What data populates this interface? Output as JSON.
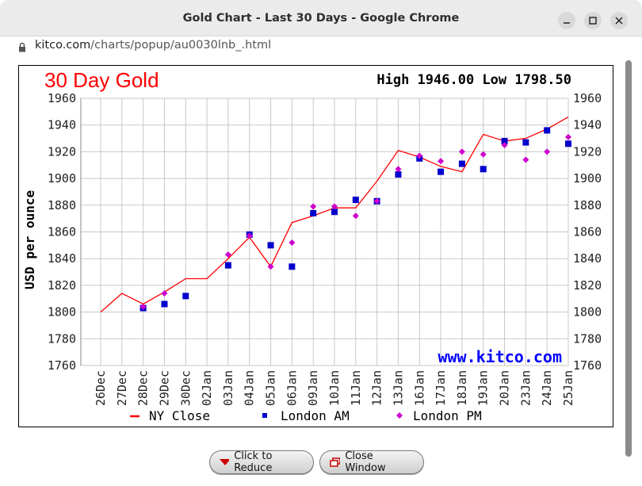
{
  "window": {
    "title": "Gold Chart - Last 30 Days - Google Chrome"
  },
  "address": {
    "host": "kitco.com",
    "path": "/charts/popup/au0030lnb_.html"
  },
  "buttons": {
    "reduce": "Click to Reduce",
    "close": "Close Window"
  },
  "chart_data": {
    "type": "line",
    "title": "30 Day Gold",
    "stats": "High 1946.00 Low 1798.50",
    "watermark": "www.kitco.com",
    "ylabel": "USD per ounce",
    "xlabel": "",
    "ylim": [
      1760,
      1960
    ],
    "yticks": [
      "1960",
      "1940",
      "1920",
      "1900",
      "1880",
      "1860",
      "1840",
      "1820",
      "1800",
      "1780",
      "1760"
    ],
    "ytick_values": [
      1960,
      1940,
      1920,
      1900,
      1880,
      1860,
      1840,
      1820,
      1800,
      1780,
      1760
    ],
    "categories": [
      "26Dec",
      "27Dec",
      "28Dec",
      "29Dec",
      "30Dec",
      "02Jan",
      "03Jan",
      "04Jan",
      "05Jan",
      "06Jan",
      "09Jan",
      "10Jan",
      "11Jan",
      "12Jan",
      "13Jan",
      "16Jan",
      "17Jan",
      "18Jan",
      "19Jan",
      "20Jan",
      "23Jan",
      "24Jan",
      "25Jan"
    ],
    "grid": true,
    "legend_position": "bottom",
    "series": [
      {
        "name": "NY Close",
        "style": "line",
        "color": "#ff0000",
        "values": [
          1800,
          1814,
          1806,
          1815,
          1825,
          1825,
          1840,
          1856,
          1834,
          1867,
          1872,
          1878,
          1878,
          1898,
          1921,
          1916,
          1909,
          1905,
          1933,
          1928,
          1930,
          1937,
          1946
        ]
      },
      {
        "name": "London AM",
        "style": "square",
        "color": "#0000cc",
        "values": [
          null,
          null,
          1803,
          1806,
          1812,
          null,
          1835,
          1858,
          1850,
          1834,
          1874,
          1875,
          1884,
          1883,
          1903,
          1915,
          1905,
          1911,
          1907,
          1928,
          1927,
          1936,
          1926
        ]
      },
      {
        "name": "London PM",
        "style": "diamond",
        "color": "#cc00cc",
        "values": [
          null,
          null,
          1804,
          1814,
          null,
          null,
          1843,
          1857,
          1834,
          1852,
          1879,
          1879,
          1872,
          1883,
          1907,
          1917,
          1913,
          1920,
          1918,
          1925,
          1914,
          1920,
          1931
        ]
      }
    ]
  }
}
